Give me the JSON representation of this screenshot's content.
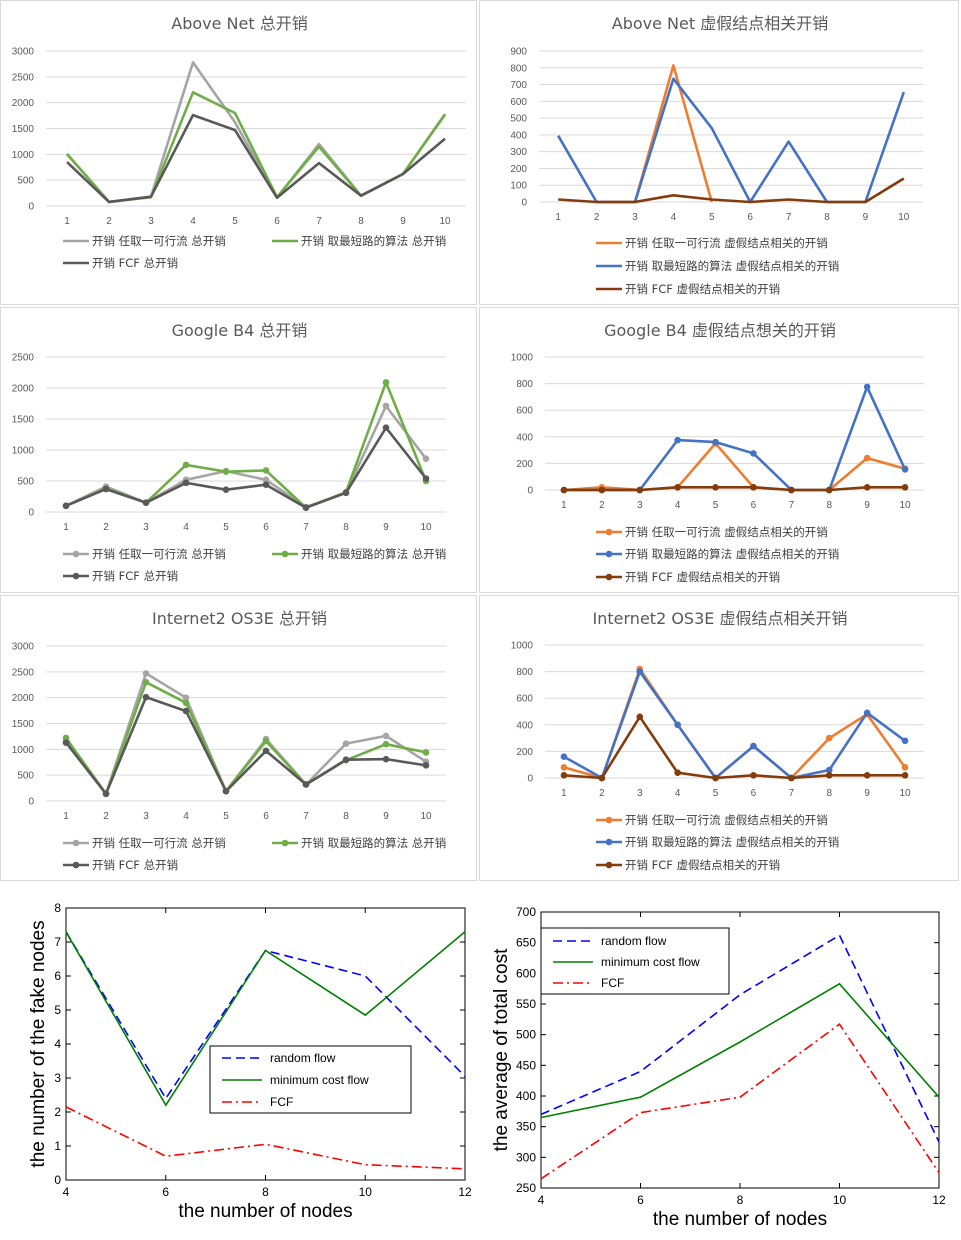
{
  "chart_data": [
    {
      "type": "line",
      "title": "Above Net 总开销",
      "categories": [
        "1",
        "2",
        "3",
        "4",
        "5",
        "6",
        "7",
        "8",
        "9",
        "10"
      ],
      "ylim": [
        0,
        3000
      ],
      "yticks": [
        "0",
        "500",
        "1000",
        "1500",
        "2000",
        "2500",
        "3000"
      ],
      "markers": false,
      "legend_layout": "top-two",
      "grid": true,
      "series": [
        {
          "name": "开销 任取一可行流 总开销",
          "color": "#a5a5a5",
          "values": [
            1000,
            80,
            180,
            2780,
            1620,
            160,
            1200,
            200,
            620,
            1780
          ]
        },
        {
          "name": "开销 取最短路的算法 总开销",
          "color": "#70ad47",
          "values": [
            1010,
            80,
            170,
            2200,
            1800,
            170,
            1150,
            200,
            620,
            1770
          ]
        },
        {
          "name": "开销 FCF 总开销",
          "color": "#595959",
          "values": [
            850,
            80,
            180,
            1760,
            1470,
            160,
            830,
            200,
            620,
            1300
          ]
        }
      ]
    },
    {
      "type": "line",
      "title": "Above Net 虚假结点相关开销",
      "categories": [
        "1",
        "2",
        "3",
        "4",
        "5",
        "6",
        "7",
        "8",
        "9",
        "10"
      ],
      "ylim": [
        0,
        900
      ],
      "yticks": [
        "0",
        "100",
        "200",
        "300",
        "400",
        "500",
        "600",
        "700",
        "800",
        "900"
      ],
      "markers": false,
      "legend_layout": "stacked",
      "grid": true,
      "series": [
        {
          "name": "开销 任取一可行流 虚假结点相关的开销",
          "color": "#ed7d31",
          "values": [
            null,
            0,
            0,
            815,
            0,
            null,
            null,
            null,
            null,
            null
          ]
        },
        {
          "name": "开销 取最短路的算法 虚假结点相关的开销",
          "color": "#4472c4",
          "values": [
            395,
            0,
            0,
            735,
            440,
            0,
            360,
            0,
            0,
            655
          ]
        },
        {
          "name": "开销 FCF 虚假结点相关的开销",
          "color": "#843c0c",
          "values": [
            15,
            0,
            0,
            40,
            15,
            0,
            15,
            0,
            0,
            140
          ]
        }
      ]
    },
    {
      "type": "line",
      "title": "Google B4 总开销",
      "categories": [
        "1",
        "2",
        "3",
        "4",
        "5",
        "6",
        "7",
        "8",
        "9",
        "10"
      ],
      "ylim": [
        0,
        2500
      ],
      "yticks": [
        "0",
        "500",
        "1000",
        "1500",
        "2000",
        "2500"
      ],
      "markers": true,
      "legend_layout": "top-two",
      "grid": true,
      "series": [
        {
          "name": "开销 任取一可行流 总开销",
          "color": "#a5a5a5",
          "values": [
            100,
            410,
            150,
            520,
            660,
            520,
            80,
            310,
            1710,
            860
          ]
        },
        {
          "name": "开销 取最短路的算法 总开销",
          "color": "#70ad47",
          "values": [
            100,
            380,
            150,
            760,
            650,
            670,
            70,
            320,
            2090,
            500
          ]
        },
        {
          "name": "开销 FCF 总开销",
          "color": "#595959",
          "values": [
            100,
            370,
            150,
            470,
            360,
            440,
            70,
            310,
            1360,
            540
          ]
        }
      ]
    },
    {
      "type": "line",
      "title": "Google B4 虚假结点想关的开销",
      "categories": [
        "1",
        "2",
        "3",
        "4",
        "5",
        "6",
        "7",
        "8",
        "9",
        "10"
      ],
      "ylim": [
        0,
        1000
      ],
      "yticks": [
        "0",
        "200",
        "400",
        "600",
        "800",
        "1000"
      ],
      "markers": true,
      "legend_layout": "stacked",
      "grid": true,
      "series": [
        {
          "name": "开销 任取一可行流 虚假结点相关的开销",
          "color": "#ed7d31",
          "values": [
            0,
            20,
            0,
            20,
            350,
            20,
            0,
            0,
            240,
            160
          ]
        },
        {
          "name": "开销 取最短路的算法 虚假结点相关的开销",
          "color": "#4472c4",
          "values": [
            0,
            0,
            0,
            375,
            360,
            275,
            0,
            0,
            775,
            155
          ]
        },
        {
          "name": "开销 FCF 虚假结点相关的开销",
          "color": "#843c0c",
          "values": [
            0,
            0,
            0,
            20,
            20,
            20,
            0,
            0,
            20,
            20
          ]
        }
      ]
    },
    {
      "type": "line",
      "title": "Internet2 OS3E 总开销",
      "categories": [
        "1",
        "2",
        "3",
        "4",
        "5",
        "6",
        "7",
        "8",
        "9",
        "10"
      ],
      "ylim": [
        0,
        3000
      ],
      "yticks": [
        "0",
        "500",
        "1000",
        "1500",
        "2000",
        "2500",
        "3000"
      ],
      "markers": true,
      "legend_layout": "top-two",
      "grid": true,
      "series": [
        {
          "name": "开销 任取一可行流 总开销",
          "color": "#a5a5a5",
          "values": [
            1140,
            140,
            2470,
            2000,
            190,
            1200,
            320,
            1110,
            1260,
            760
          ]
        },
        {
          "name": "开销 取最短路的算法 总开销",
          "color": "#70ad47",
          "values": [
            1220,
            140,
            2300,
            1900,
            190,
            1160,
            320,
            790,
            1100,
            940
          ]
        },
        {
          "name": "开销 FCF 总开销",
          "color": "#595959",
          "values": [
            1130,
            140,
            2010,
            1740,
            190,
            970,
            320,
            800,
            810,
            690
          ]
        }
      ]
    },
    {
      "type": "line",
      "title": "Internet2 OS3E 虚假结点相关开销",
      "categories": [
        "1",
        "2",
        "3",
        "4",
        "5",
        "6",
        "7",
        "8",
        "9",
        "10"
      ],
      "ylim": [
        0,
        1000
      ],
      "yticks": [
        "0",
        "200",
        "400",
        "600",
        "800",
        "1000"
      ],
      "markers": true,
      "legend_layout": "stacked",
      "grid": true,
      "series": [
        {
          "name": "开销 任取一可行流 虚假结点相关的开销",
          "color": "#ed7d31",
          "values": [
            80,
            0,
            820,
            400,
            0,
            240,
            0,
            300,
            480,
            80
          ]
        },
        {
          "name": "开销 取最短路的算法 虚假结点相关的开销",
          "color": "#4472c4",
          "values": [
            160,
            0,
            800,
            400,
            0,
            240,
            0,
            60,
            490,
            280
          ]
        },
        {
          "name": "开销 FCF 虚假结点相关的开销",
          "color": "#843c0c",
          "values": [
            20,
            0,
            460,
            40,
            0,
            20,
            0,
            20,
            20,
            20
          ]
        }
      ]
    },
    {
      "type": "line",
      "xlabel": "the number of nodes",
      "ylabel": "the number of the fake nodes",
      "x": [
        4,
        6,
        8,
        10,
        12
      ],
      "xlim": [
        4,
        12
      ],
      "ylim": [
        0,
        8
      ],
      "xticks": [
        "4",
        "6",
        "8",
        "10",
        "12"
      ],
      "yticks": [
        "0",
        "1",
        "2",
        "3",
        "4",
        "5",
        "6",
        "7",
        "8"
      ],
      "legend_position": "center",
      "series": [
        {
          "name": "random flow",
          "style": "dashed",
          "color": "#0000ff",
          "values": [
            7.3,
            2.4,
            6.75,
            6.0,
            3.05
          ]
        },
        {
          "name": "minimum cost flow",
          "style": "solid",
          "color": "#008000",
          "values": [
            7.3,
            2.2,
            6.75,
            4.85,
            7.3
          ]
        },
        {
          "name": "FCF",
          "style": "dashdot",
          "color": "#ff0000",
          "values": [
            2.15,
            0.7,
            1.05,
            0.45,
            0.33
          ]
        }
      ]
    },
    {
      "type": "line",
      "xlabel": "the number of nodes",
      "ylabel": "the average of total cost",
      "x": [
        4,
        6,
        8,
        10,
        12
      ],
      "xlim": [
        4,
        12
      ],
      "ylim": [
        250,
        700
      ],
      "xticks": [
        "4",
        "6",
        "8",
        "10",
        "12"
      ],
      "yticks": [
        "250",
        "300",
        "350",
        "400",
        "450",
        "500",
        "550",
        "600",
        "650",
        "700"
      ],
      "legend_position": "top-left",
      "series": [
        {
          "name": "random flow",
          "style": "dashed",
          "color": "#0000ff",
          "values": [
            370,
            440,
            565,
            662,
            325
          ]
        },
        {
          "name": "minimum cost flow",
          "style": "solid",
          "color": "#008000",
          "values": [
            365,
            398,
            488,
            583,
            398
          ]
        },
        {
          "name": "FCF",
          "style": "dashdot",
          "color": "#ff0000",
          "values": [
            265,
            373,
            398,
            517,
            275
          ]
        }
      ]
    }
  ]
}
